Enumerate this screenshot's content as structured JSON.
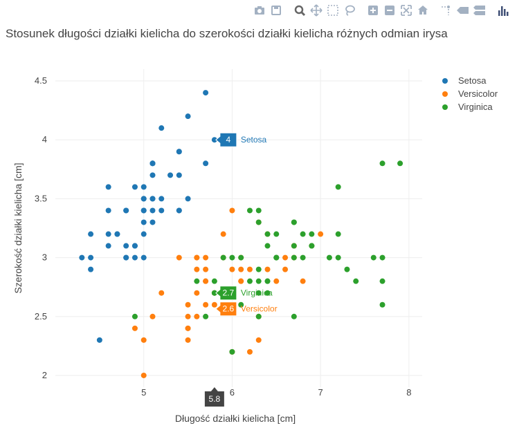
{
  "modebar": {
    "buttons": [
      {
        "name": "camera-icon"
      },
      {
        "name": "save-icon"
      },
      {
        "sep": true
      },
      {
        "name": "zoom-icon"
      },
      {
        "name": "pan-icon"
      },
      {
        "name": "box-select-icon"
      },
      {
        "name": "lasso-icon"
      },
      {
        "sep": true
      },
      {
        "name": "zoom-in-icon"
      },
      {
        "name": "zoom-out-icon"
      },
      {
        "name": "autoscale-icon"
      },
      {
        "name": "reset-axes-icon"
      },
      {
        "sep": true
      },
      {
        "name": "spike-lines-icon"
      },
      {
        "name": "hover-closest-icon"
      },
      {
        "name": "hover-compare-icon"
      },
      {
        "sep": true
      },
      {
        "name": "plotly-logo-icon"
      }
    ],
    "icon_color": "#a3b1c2",
    "logo_color": "#3f4f75"
  },
  "chart_data": {
    "type": "scatter",
    "title": "Stosunek długości działki kielicha do szerokości działki kielicha różnych odmian irysa",
    "xlabel": "Długość działki kielicha [cm]",
    "ylabel": "Szerokość działki kielicha [cm]",
    "xlim": [
      4.0,
      8.15
    ],
    "ylim": [
      1.9,
      4.6
    ],
    "xticks": [
      5,
      6,
      7,
      8
    ],
    "yticks": [
      2,
      2.5,
      3,
      3.5,
      4,
      4.5
    ],
    "xtick_labels": [
      "5",
      "6",
      "7",
      "8"
    ],
    "ytick_labels": [
      "2",
      "2.5",
      "3",
      "3.5",
      "4",
      "4.5"
    ],
    "grid": true,
    "legend_position": "top-right",
    "series": [
      {
        "name": "Setosa",
        "color": "#1f77b4",
        "points": [
          [
            5.1,
            3.5
          ],
          [
            4.9,
            3.0
          ],
          [
            4.7,
            3.2
          ],
          [
            4.6,
            3.1
          ],
          [
            5.0,
            3.6
          ],
          [
            5.4,
            3.9
          ],
          [
            4.6,
            3.4
          ],
          [
            5.0,
            3.4
          ],
          [
            4.4,
            2.9
          ],
          [
            4.9,
            3.1
          ],
          [
            5.4,
            3.7
          ],
          [
            4.8,
            3.4
          ],
          [
            4.8,
            3.0
          ],
          [
            4.3,
            3.0
          ],
          [
            5.8,
            4.0
          ],
          [
            5.7,
            4.4
          ],
          [
            5.4,
            3.9
          ],
          [
            5.1,
            3.5
          ],
          [
            5.7,
            3.8
          ],
          [
            5.1,
            3.8
          ],
          [
            5.4,
            3.4
          ],
          [
            5.1,
            3.7
          ],
          [
            4.6,
            3.6
          ],
          [
            5.1,
            3.3
          ],
          [
            4.8,
            3.4
          ],
          [
            5.0,
            3.0
          ],
          [
            5.0,
            3.4
          ],
          [
            5.2,
            3.5
          ],
          [
            5.2,
            3.4
          ],
          [
            4.7,
            3.2
          ],
          [
            4.8,
            3.1
          ],
          [
            5.4,
            3.4
          ],
          [
            5.2,
            4.1
          ],
          [
            5.5,
            4.2
          ],
          [
            4.9,
            3.1
          ],
          [
            5.0,
            3.2
          ],
          [
            5.5,
            3.5
          ],
          [
            4.9,
            3.6
          ],
          [
            4.4,
            3.0
          ],
          [
            5.1,
            3.4
          ],
          [
            5.0,
            3.5
          ],
          [
            4.5,
            2.3
          ],
          [
            4.4,
            3.2
          ],
          [
            5.0,
            3.5
          ],
          [
            5.1,
            3.8
          ],
          [
            4.8,
            3.0
          ],
          [
            5.1,
            3.8
          ],
          [
            4.6,
            3.2
          ],
          [
            5.3,
            3.7
          ],
          [
            5.0,
            3.3
          ]
        ]
      },
      {
        "name": "Versicolor",
        "color": "#ff7f0e",
        "points": [
          [
            7.0,
            3.2
          ],
          [
            6.4,
            3.2
          ],
          [
            6.9,
            3.1
          ],
          [
            5.5,
            2.3
          ],
          [
            6.5,
            2.8
          ],
          [
            5.7,
            2.8
          ],
          [
            6.3,
            3.3
          ],
          [
            4.9,
            2.4
          ],
          [
            6.6,
            2.9
          ],
          [
            5.2,
            2.7
          ],
          [
            5.0,
            2.0
          ],
          [
            5.9,
            3.0
          ],
          [
            6.0,
            2.2
          ],
          [
            6.1,
            2.9
          ],
          [
            5.6,
            2.9
          ],
          [
            6.7,
            3.1
          ],
          [
            5.6,
            3.0
          ],
          [
            5.8,
            2.7
          ],
          [
            6.2,
            2.2
          ],
          [
            5.6,
            2.5
          ],
          [
            5.9,
            3.2
          ],
          [
            6.1,
            2.8
          ],
          [
            6.3,
            2.5
          ],
          [
            6.1,
            2.8
          ],
          [
            6.4,
            2.9
          ],
          [
            6.6,
            3.0
          ],
          [
            6.8,
            2.8
          ],
          [
            6.7,
            3.0
          ],
          [
            6.0,
            2.9
          ],
          [
            5.7,
            2.6
          ],
          [
            5.5,
            2.4
          ],
          [
            5.5,
            2.4
          ],
          [
            5.8,
            2.7
          ],
          [
            6.0,
            2.7
          ],
          [
            5.4,
            3.0
          ],
          [
            6.0,
            3.4
          ],
          [
            6.7,
            3.1
          ],
          [
            6.3,
            2.3
          ],
          [
            5.6,
            3.0
          ],
          [
            5.5,
            2.5
          ],
          [
            5.5,
            2.6
          ],
          [
            6.1,
            3.0
          ],
          [
            5.8,
            2.6
          ],
          [
            5.0,
            2.3
          ],
          [
            5.6,
            2.7
          ],
          [
            5.7,
            3.0
          ],
          [
            5.7,
            2.9
          ],
          [
            6.2,
            2.9
          ],
          [
            5.1,
            2.5
          ],
          [
            5.7,
            2.8
          ]
        ]
      },
      {
        "name": "Virginica",
        "color": "#2ca02c",
        "points": [
          [
            6.3,
            3.3
          ],
          [
            5.8,
            2.7
          ],
          [
            7.1,
            3.0
          ],
          [
            6.3,
            2.9
          ],
          [
            6.5,
            3.0
          ],
          [
            7.6,
            3.0
          ],
          [
            4.9,
            2.5
          ],
          [
            7.3,
            2.9
          ],
          [
            6.7,
            2.5
          ],
          [
            7.2,
            3.6
          ],
          [
            6.5,
            3.2
          ],
          [
            6.4,
            2.7
          ],
          [
            6.8,
            3.0
          ],
          [
            5.7,
            2.5
          ],
          [
            5.8,
            2.8
          ],
          [
            6.4,
            3.2
          ],
          [
            6.5,
            3.0
          ],
          [
            7.7,
            3.8
          ],
          [
            7.7,
            2.6
          ],
          [
            6.0,
            2.2
          ],
          [
            6.9,
            3.2
          ],
          [
            5.6,
            2.8
          ],
          [
            7.7,
            2.8
          ],
          [
            6.3,
            2.7
          ],
          [
            6.7,
            3.3
          ],
          [
            7.2,
            3.2
          ],
          [
            6.2,
            2.8
          ],
          [
            6.1,
            3.0
          ],
          [
            6.4,
            2.8
          ],
          [
            7.2,
            3.0
          ],
          [
            7.4,
            2.8
          ],
          [
            7.9,
            3.8
          ],
          [
            6.4,
            2.8
          ],
          [
            6.3,
            2.8
          ],
          [
            6.1,
            2.6
          ],
          [
            7.7,
            3.0
          ],
          [
            6.3,
            3.4
          ],
          [
            6.4,
            3.1
          ],
          [
            6.0,
            3.0
          ],
          [
            6.9,
            3.1
          ],
          [
            6.7,
            3.1
          ],
          [
            6.9,
            3.1
          ],
          [
            5.8,
            2.7
          ],
          [
            6.8,
            3.2
          ],
          [
            6.7,
            3.3
          ],
          [
            6.7,
            3.0
          ],
          [
            6.3,
            2.5
          ],
          [
            6.5,
            3.0
          ],
          [
            6.2,
            3.4
          ],
          [
            5.9,
            3.0
          ]
        ]
      }
    ],
    "hover": {
      "x": 5.8,
      "x_label": "5.8",
      "labels": [
        {
          "series": "Setosa",
          "y": 4.0,
          "value": "4"
        },
        {
          "series": "Virginica",
          "y": 2.7,
          "value": "2.7"
        },
        {
          "series": "Versicolor",
          "y": 2.6,
          "value": "2.6"
        }
      ]
    }
  }
}
